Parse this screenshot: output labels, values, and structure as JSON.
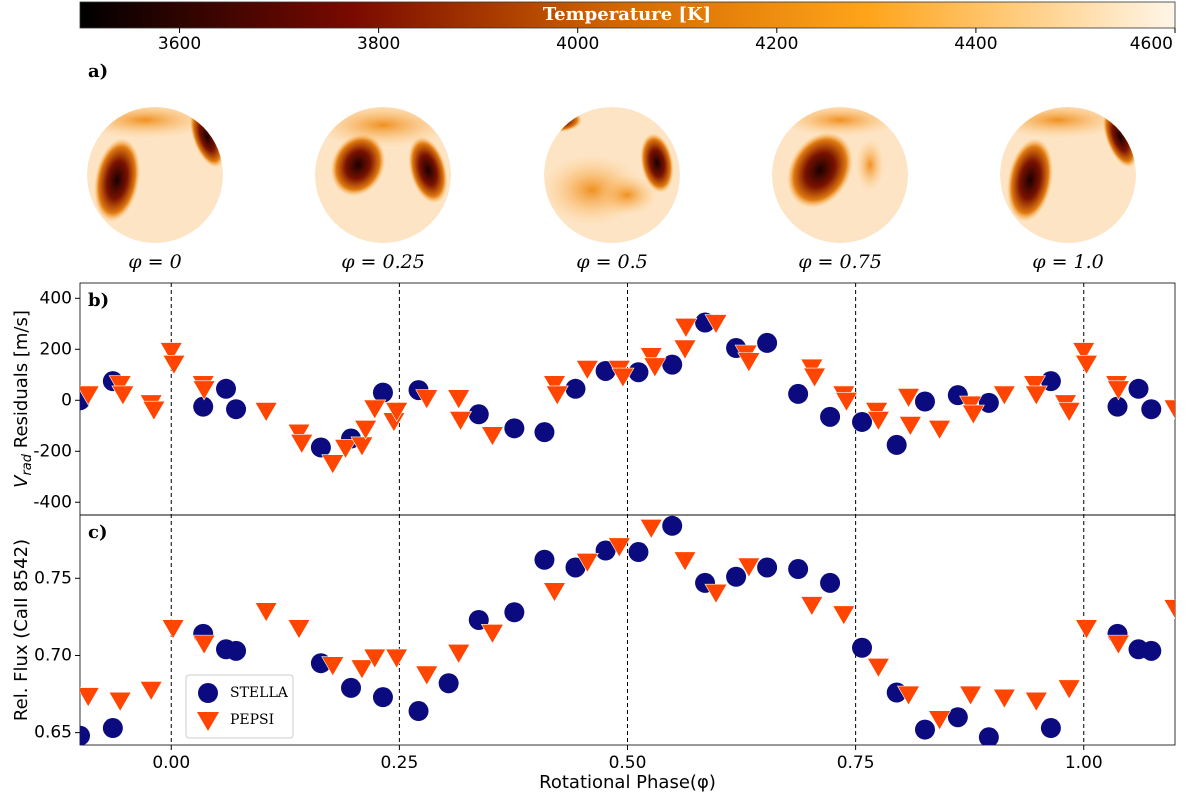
{
  "colorbar": {
    "label": "Temperature [K]",
    "lim": [
      3500,
      4600
    ],
    "ticks": [
      3600,
      3800,
      4000,
      4200,
      4400,
      4600
    ]
  },
  "maps": {
    "panel_label": "a)",
    "labels": [
      "φ = 0",
      "φ = 0.25",
      "φ = 0.5",
      "φ = 0.75",
      "φ = 1.0"
    ]
  },
  "chart_data": [
    {
      "type": "scatter",
      "panel_label": "b)",
      "ylabel": {
        "symbol": "V",
        "subscript": "rad",
        "text": " Residuals [m/s]"
      },
      "xlim": [
        -0.1,
        1.1
      ],
      "ylim": [
        -450,
        460
      ],
      "yticks": [
        -400,
        -200,
        0,
        200,
        400
      ],
      "series": [
        {
          "name": "STELLA",
          "color": "#0b0b7f",
          "marker": "circle",
          "x": [
            -0.1,
            -0.064,
            0.035,
            0.06,
            0.071,
            0.164,
            0.197,
            0.232,
            0.271,
            0.337,
            0.376,
            0.409,
            0.443,
            0.476,
            0.512,
            0.549,
            0.585,
            0.619,
            0.653,
            0.687,
            0.722,
            0.757,
            0.795,
            0.826,
            0.862,
            0.896,
            0.964,
            1.037,
            1.06,
            1.074
          ],
          "values": [
            0,
            75,
            -25,
            45,
            -35,
            -185,
            -150,
            30,
            40,
            -55,
            -110,
            -125,
            45,
            115,
            110,
            140,
            305,
            205,
            225,
            25,
            -65,
            -85,
            -175,
            -5,
            20,
            -10,
            75,
            -25,
            45,
            -35
          ]
        },
        {
          "name": "PEPSI",
          "color": "#ff4500",
          "marker": "triangle_down",
          "x": [
            -0.091,
            -0.056,
            -0.053,
            -0.022,
            -0.019,
            0.0,
            0.003,
            0.035,
            0.036,
            0.104,
            0.14,
            0.143,
            0.177,
            0.191,
            0.209,
            0.213,
            0.223,
            0.244,
            0.247,
            0.28,
            0.315,
            0.317,
            0.352,
            0.42,
            0.423,
            0.456,
            0.491,
            0.495,
            0.526,
            0.53,
            0.563,
            0.564,
            0.597,
            0.63,
            0.633,
            0.702,
            0.705,
            0.737,
            0.74,
            0.773,
            0.775,
            0.808,
            0.81,
            0.842,
            0.876,
            0.879,
            0.913,
            0.946,
            0.948,
            0.98,
            0.984,
            1.0,
            1.003,
            1.036,
            1.038,
            1.1
          ],
          "values": [
            25,
            65,
            25,
            -10,
            -35,
            195,
            145,
            65,
            45,
            -40,
            -125,
            -165,
            -245,
            -185,
            -175,
            -110,
            -30,
            -80,
            -40,
            10,
            10,
            -75,
            -135,
            65,
            25,
            125,
            125,
            95,
            175,
            135,
            205,
            290,
            305,
            185,
            155,
            130,
            95,
            25,
            0,
            -40,
            -75,
            15,
            -95,
            -110,
            -15,
            -50,
            25,
            65,
            25,
            -10,
            -40,
            195,
            145,
            65,
            45,
            -30
          ]
        }
      ]
    },
    {
      "type": "scatter",
      "panel_label": "c)",
      "ylabel": {
        "text": "Rel. Flux (CaII 8542)"
      },
      "xlabel": "Rotational Phase(φ)",
      "xlim": [
        -0.1,
        1.1
      ],
      "ylim": [
        0.642,
        0.791
      ],
      "xticks": [
        {
          "value": 0,
          "label": "0.00"
        },
        {
          "value": 0.25,
          "label": "0.25"
        },
        {
          "value": 0.5,
          "label": "0.50"
        },
        {
          "value": 0.75,
          "label": "0.75"
        },
        {
          "value": 1,
          "label": "1.00"
        }
      ],
      "yticks": [
        0.65,
        {
          "value": 0.7,
          "label": "0.70"
        },
        0.75
      ],
      "phase_lines": true,
      "legend": "lower left",
      "series": [
        {
          "name": "STELLA",
          "color": "#0b0b7f",
          "marker": "circle",
          "x": [
            -0.1,
            -0.064,
            0.035,
            0.06,
            0.071,
            0.164,
            0.197,
            0.232,
            0.271,
            0.304,
            0.337,
            0.376,
            0.409,
            0.443,
            0.476,
            0.512,
            0.549,
            0.585,
            0.619,
            0.653,
            0.687,
            0.722,
            0.757,
            0.795,
            0.826,
            0.862,
            0.896,
            0.964,
            1.037,
            1.06,
            1.074
          ],
          "values": [
            0.648,
            0.653,
            0.714,
            0.704,
            0.703,
            0.695,
            0.679,
            0.673,
            0.664,
            0.682,
            0.723,
            0.728,
            0.762,
            0.757,
            0.768,
            0.767,
            0.784,
            0.747,
            0.751,
            0.757,
            0.756,
            0.747,
            0.705,
            0.676,
            0.652,
            0.66,
            0.647,
            0.653,
            0.714,
            0.704,
            0.703
          ]
        },
        {
          "name": "PEPSI",
          "color": "#ff4500",
          "marker": "triangle_down",
          "x": [
            -0.091,
            -0.056,
            -0.022,
            0.002,
            0.036,
            0.104,
            0.14,
            0.177,
            0.209,
            0.223,
            0.247,
            0.28,
            0.315,
            0.352,
            0.42,
            0.456,
            0.491,
            0.526,
            0.563,
            0.597,
            0.633,
            0.702,
            0.737,
            0.775,
            0.808,
            0.842,
            0.876,
            0.913,
            0.948,
            0.984,
            1.003,
            1.038,
            1.1
          ],
          "values": [
            0.674,
            0.671,
            0.678,
            0.718,
            0.708,
            0.729,
            0.718,
            0.694,
            0.692,
            0.699,
            0.699,
            0.688,
            0.702,
            0.715,
            0.742,
            0.761,
            0.771,
            0.783,
            0.762,
            0.741,
            0.758,
            0.733,
            0.727,
            0.693,
            0.675,
            0.659,
            0.675,
            0.673,
            0.671,
            0.679,
            0.718,
            0.708,
            0.731
          ]
        }
      ]
    }
  ]
}
